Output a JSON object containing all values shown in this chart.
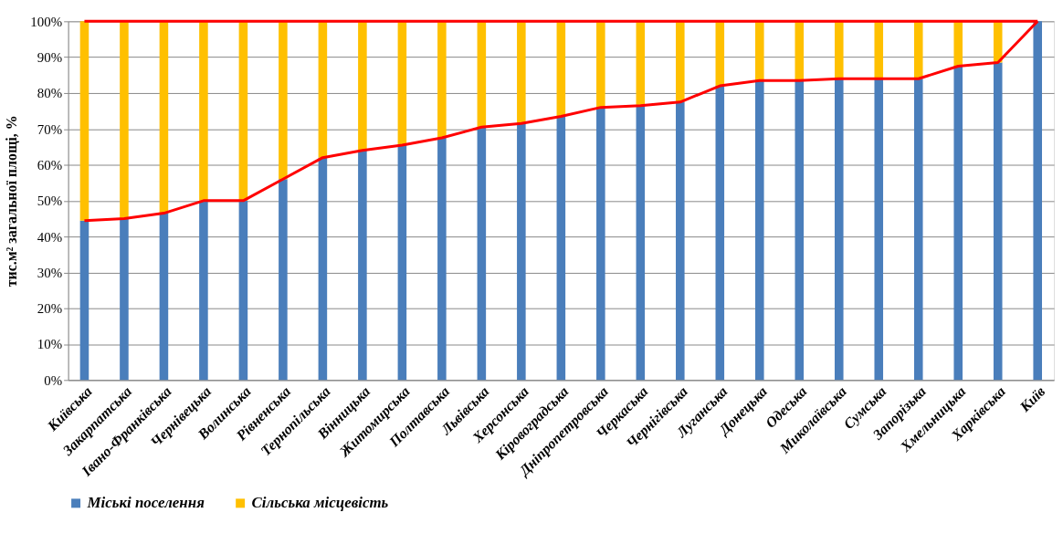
{
  "chart_data": {
    "type": "bar",
    "stacked": true,
    "ylabel": "тис.м²  загальної площі, %",
    "categories": [
      "Київська",
      "Закарпатська",
      "Івано-Франківська",
      "Чернівецька",
      "Волинська",
      "Рівненська",
      "Тернопільська",
      "Вінницька",
      "Житомирська",
      "Полтавська",
      "Львівська",
      "Херсонська",
      "Кіровоградська",
      "Дніпропетровська",
      "Черкаська",
      "Чернігівська",
      "Луганська",
      "Донецька",
      "Одеська",
      "Миколаївська",
      "Сумська",
      "Запорізька",
      "Хмельницька",
      "Харківська",
      "Київ"
    ],
    "series": [
      {
        "name": "Міські поселення",
        "color": "#4a7ebb",
        "values": [
          44.4,
          45,
          46.5,
          50,
          50,
          56,
          62,
          64,
          65.5,
          67.5,
          70.5,
          71.5,
          73.5,
          76,
          76.5,
          77.5,
          82,
          83.5,
          83.5,
          84,
          84,
          84,
          87.5,
          88.5,
          100
        ]
      },
      {
        "name": "Сільська місцевість",
        "color": "#ffc000",
        "values": [
          55.6,
          55,
          53.5,
          50,
          50,
          44,
          38,
          36,
          34.5,
          32.5,
          29.5,
          28.5,
          26.5,
          24,
          23.5,
          22.5,
          18,
          16.5,
          16.5,
          16,
          16,
          16,
          12.5,
          11.5,
          0
        ]
      },
      {
        "type": "line",
        "color": "#ff0000",
        "values": [
          44.4,
          45,
          46.5,
          50,
          50,
          56,
          62,
          64,
          65.5,
          67.5,
          70.5,
          71.5,
          73.5,
          76,
          76.5,
          77.5,
          82,
          83.5,
          83.5,
          84,
          84,
          84,
          87.5,
          88.5,
          100
        ]
      },
      {
        "type": "line",
        "color": "#ff0000",
        "values": [
          100,
          100,
          100,
          100,
          100,
          100,
          100,
          100,
          100,
          100,
          100,
          100,
          100,
          100,
          100,
          100,
          100,
          100,
          100,
          100,
          100,
          100,
          100,
          100,
          100
        ]
      }
    ],
    "ylim": [
      0,
      100
    ],
    "yticks": [
      {
        "value": 0,
        "label": "0%"
      },
      {
        "value": 10,
        "label": "10%"
      },
      {
        "value": 20,
        "label": "20%"
      },
      {
        "value": 30,
        "label": "30%"
      },
      {
        "value": 40,
        "label": "40%"
      },
      {
        "value": 50,
        "label": "50%"
      },
      {
        "value": 60,
        "label": "60%"
      },
      {
        "value": 70,
        "label": "70%"
      },
      {
        "value": 80,
        "label": "80%"
      },
      {
        "value": 90,
        "label": "90%"
      },
      {
        "value": 100,
        "label": "100%"
      }
    ],
    "grid": "y",
    "legend": "bottom"
  }
}
